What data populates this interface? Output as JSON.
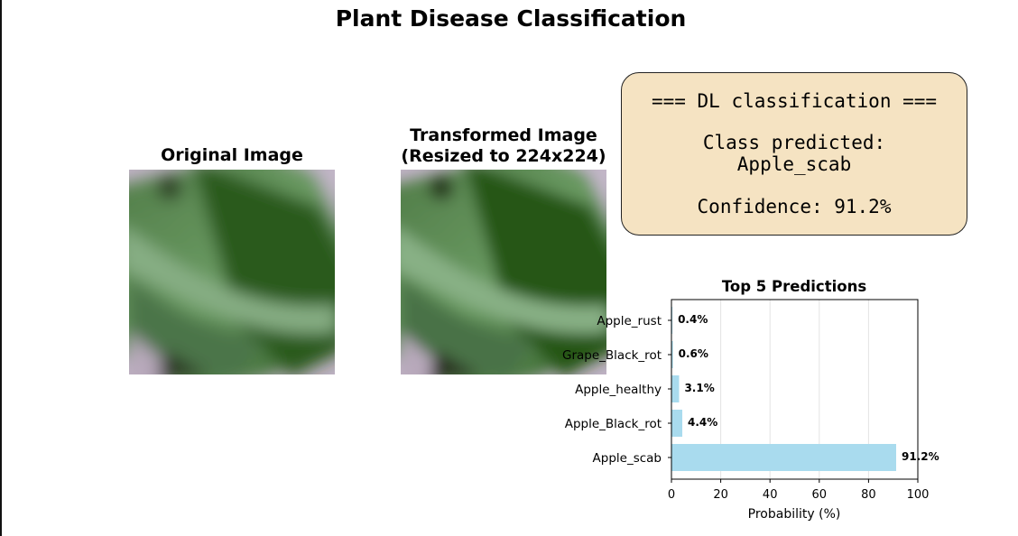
{
  "page": {
    "title": "Plant Disease Classification"
  },
  "original_panel": {
    "title": "Original Image"
  },
  "transformed_panel": {
    "title_line1": "Transformed Image",
    "title_line2": "(Resized to 224x224)"
  },
  "result_box": {
    "header": "=== DL classification ===",
    "class_label": "Class predicted:",
    "class_value": "Apple_scab",
    "confidence": "Confidence: 91.2%",
    "background_color": "#f5e3c2"
  },
  "chart_data": {
    "type": "bar",
    "orientation": "horizontal",
    "title": "Top 5 Predictions",
    "xlabel": "Probability (%)",
    "ylabel": "",
    "categories": [
      "Apple_scab",
      "Apple_Black_rot",
      "Apple_healthy",
      "Grape_Black_rot",
      "Apple_rust"
    ],
    "values": [
      91.2,
      4.4,
      3.1,
      0.6,
      0.4
    ],
    "value_labels": [
      "91.2%",
      "4.4%",
      "3.1%",
      "0.6%",
      "0.4%"
    ],
    "xlim": [
      0,
      100
    ],
    "xticks": [
      0,
      20,
      40,
      60,
      80,
      100
    ],
    "grid": "vertical",
    "bar_color": "#a9dbee"
  }
}
